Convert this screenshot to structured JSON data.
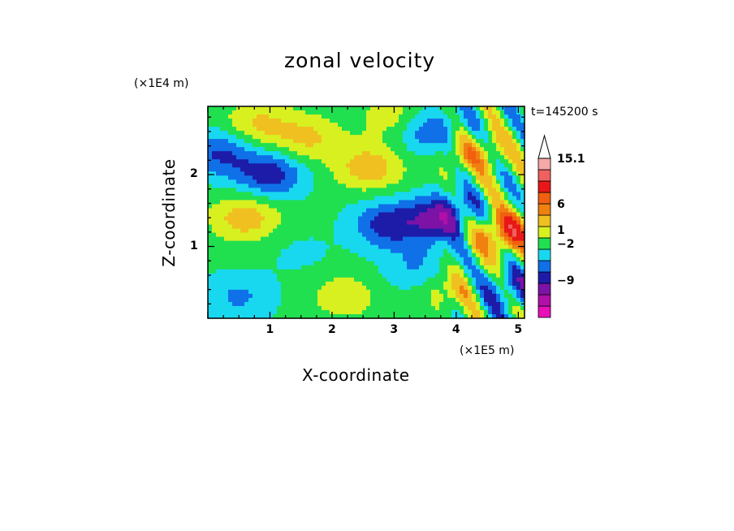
{
  "chart_data": {
    "type": "heatmap",
    "title": "zonal velocity",
    "xlabel": "X-coordinate",
    "ylabel": "Z-coordinate",
    "x_scale_note": "(×1E5 m)",
    "y_scale_note": "(×1E4 m)",
    "time_label": "t=145200 s",
    "xlim": [
      0,
      5.1
    ],
    "ylim": [
      0,
      2.95
    ],
    "x_ticks": [
      "1",
      "2",
      "3",
      "4",
      "5"
    ],
    "y_ticks": [
      "1",
      "2"
    ],
    "colorbar": {
      "levels_colors": [
        "#e810b8",
        "#b010a8",
        "#7c12a6",
        "#1c1ca8",
        "#1070e8",
        "#18d8f0",
        "#20e050",
        "#d8f020",
        "#f0c020",
        "#f08010",
        "#f06010",
        "#e81818",
        "#f06060",
        "#f4a8a8"
      ],
      "labels": [
        "15.1",
        "6",
        "1",
        "-2",
        "-9"
      ],
      "extend": "max"
    },
    "field_blobs": [
      {
        "x": 0.6,
        "z": 1.4,
        "v": 5
      },
      {
        "x": 0.2,
        "z": 2.3,
        "v": -5
      },
      {
        "x": 1.0,
        "z": 2.0,
        "v": -6
      },
      {
        "x": 0.8,
        "z": 2.7,
        "v": 4
      },
      {
        "x": 1.6,
        "z": 2.5,
        "v": 4
      },
      {
        "x": 2.6,
        "z": 2.1,
        "v": 5
      },
      {
        "x": 2.9,
        "z": 1.3,
        "v": -6
      },
      {
        "x": 3.8,
        "z": 1.4,
        "v": -8
      },
      {
        "x": 4.8,
        "z": 1.2,
        "v": 9
      },
      {
        "x": 4.3,
        "z": 2.3,
        "v": 5
      },
      {
        "x": 3.6,
        "z": 2.6,
        "v": -5
      },
      {
        "x": 2.2,
        "z": 0.3,
        "v": 3
      },
      {
        "x": 0.5,
        "z": 0.3,
        "v": -3
      },
      {
        "x": 1.5,
        "z": 0.9,
        "v": -1
      },
      {
        "x": 4.0,
        "z": 0.4,
        "v": 4
      },
      {
        "x": 4.8,
        "z": 0.4,
        "v": -5
      },
      {
        "x": 3.4,
        "z": 0.7,
        "v": -3
      },
      {
        "x": 3.0,
        "z": 2.8,
        "v": 3
      }
    ]
  }
}
